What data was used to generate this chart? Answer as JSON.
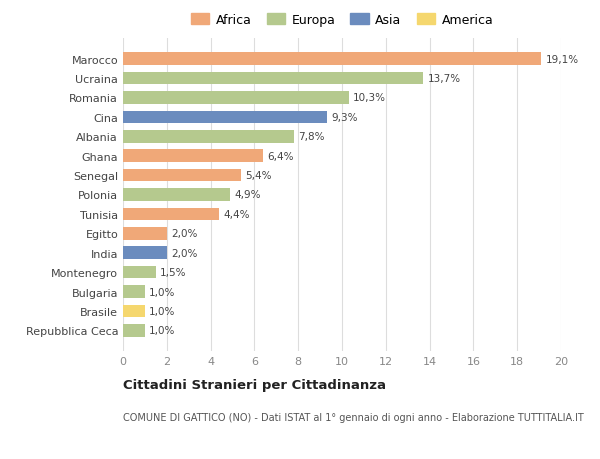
{
  "categories": [
    "Repubblica Ceca",
    "Brasile",
    "Bulgaria",
    "Montenegro",
    "India",
    "Egitto",
    "Tunisia",
    "Polonia",
    "Senegal",
    "Ghana",
    "Albania",
    "Cina",
    "Romania",
    "Ucraina",
    "Marocco"
  ],
  "values": [
    1.0,
    1.0,
    1.0,
    1.5,
    2.0,
    2.0,
    4.4,
    4.9,
    5.4,
    6.4,
    7.8,
    9.3,
    10.3,
    13.7,
    19.1
  ],
  "labels": [
    "1,0%",
    "1,0%",
    "1,0%",
    "1,5%",
    "2,0%",
    "2,0%",
    "4,4%",
    "4,9%",
    "5,4%",
    "6,4%",
    "7,8%",
    "9,3%",
    "10,3%",
    "13,7%",
    "19,1%"
  ],
  "continents": [
    "Europa",
    "America",
    "Europa",
    "Europa",
    "Asia",
    "Africa",
    "Africa",
    "Europa",
    "Africa",
    "Africa",
    "Europa",
    "Asia",
    "Europa",
    "Europa",
    "Africa"
  ],
  "colors": {
    "Africa": "#F0A878",
    "Europa": "#B5C98E",
    "Asia": "#6B8CBE",
    "America": "#F5D76E"
  },
  "legend_order": [
    "Africa",
    "Europa",
    "Asia",
    "America"
  ],
  "xlim": [
    0,
    20
  ],
  "xticks": [
    0,
    2,
    4,
    6,
    8,
    10,
    12,
    14,
    16,
    18,
    20
  ],
  "title": "Cittadini Stranieri per Cittadinanza",
  "subtitle": "COMUNE DI GATTICO (NO) - Dati ISTAT al 1° gennaio di ogni anno - Elaborazione TUTTITALIA.IT",
  "background_color": "#ffffff",
  "grid_color": "#dddddd",
  "bar_height": 0.65
}
